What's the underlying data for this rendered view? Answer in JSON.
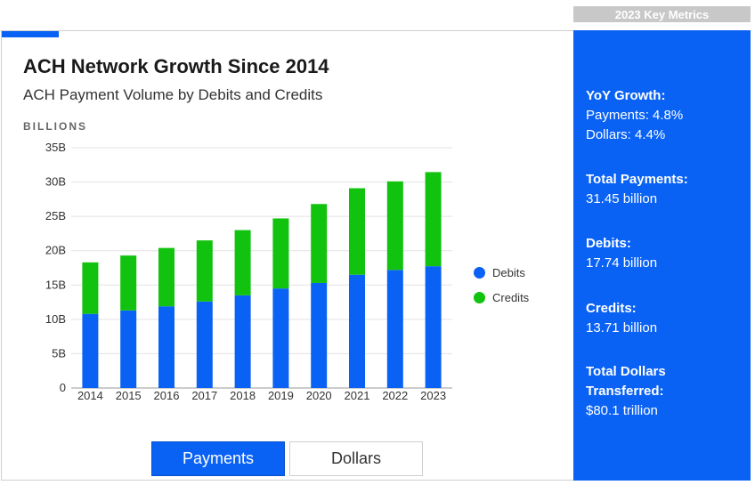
{
  "header_tab": {
    "label": "2023 Key Metrics"
  },
  "card": {
    "title": "ACH Network Growth Since 2014",
    "subtitle": "ACH Payment Volume by Debits and Credits",
    "unit_label": "BILLIONS"
  },
  "chart_data": {
    "type": "bar",
    "stacked": true,
    "title": "ACH Network Growth Since 2014",
    "subtitle": "ACH Payment Volume by Debits and Credits",
    "ylabel": "BILLIONS",
    "categories": [
      "2014",
      "2015",
      "2016",
      "2017",
      "2018",
      "2019",
      "2020",
      "2021",
      "2022",
      "2023"
    ],
    "series": [
      {
        "name": "Debits",
        "color": "#0a62f5",
        "values": [
          10.8,
          11.3,
          11.9,
          12.6,
          13.5,
          14.5,
          15.3,
          16.5,
          17.2,
          17.74
        ]
      },
      {
        "name": "Credits",
        "color": "#11c20f",
        "values": [
          7.5,
          8.0,
          8.5,
          8.9,
          9.5,
          10.2,
          11.5,
          12.6,
          12.9,
          13.71
        ]
      }
    ],
    "ylim": [
      0,
      35
    ],
    "yticks": [
      0,
      5,
      10,
      15,
      20,
      25,
      30,
      35
    ],
    "ytick_labels": [
      "0",
      "5B",
      "10B",
      "15B",
      "20B",
      "25B",
      "30B",
      "35B"
    ],
    "grid": true,
    "legend_position": "right"
  },
  "toggle": {
    "payments_label": "Payments",
    "dollars_label": "Dollars",
    "active": "Payments"
  },
  "metrics": {
    "yoy_title": "YoY Growth:",
    "yoy_payments": "Payments: 4.8%",
    "yoy_dollars": "Dollars: 4.4%",
    "total_payments_title": "Total Payments:",
    "total_payments_value": "31.45 billion",
    "debits_title": "Debits:",
    "debits_value": "17.74 billion",
    "credits_title": "Credits:",
    "credits_value": "13.71 billion",
    "total_dollars_title_1": "Total Dollars",
    "total_dollars_title_2": "Transferred:",
    "total_dollars_value": "$80.1 trillion"
  }
}
